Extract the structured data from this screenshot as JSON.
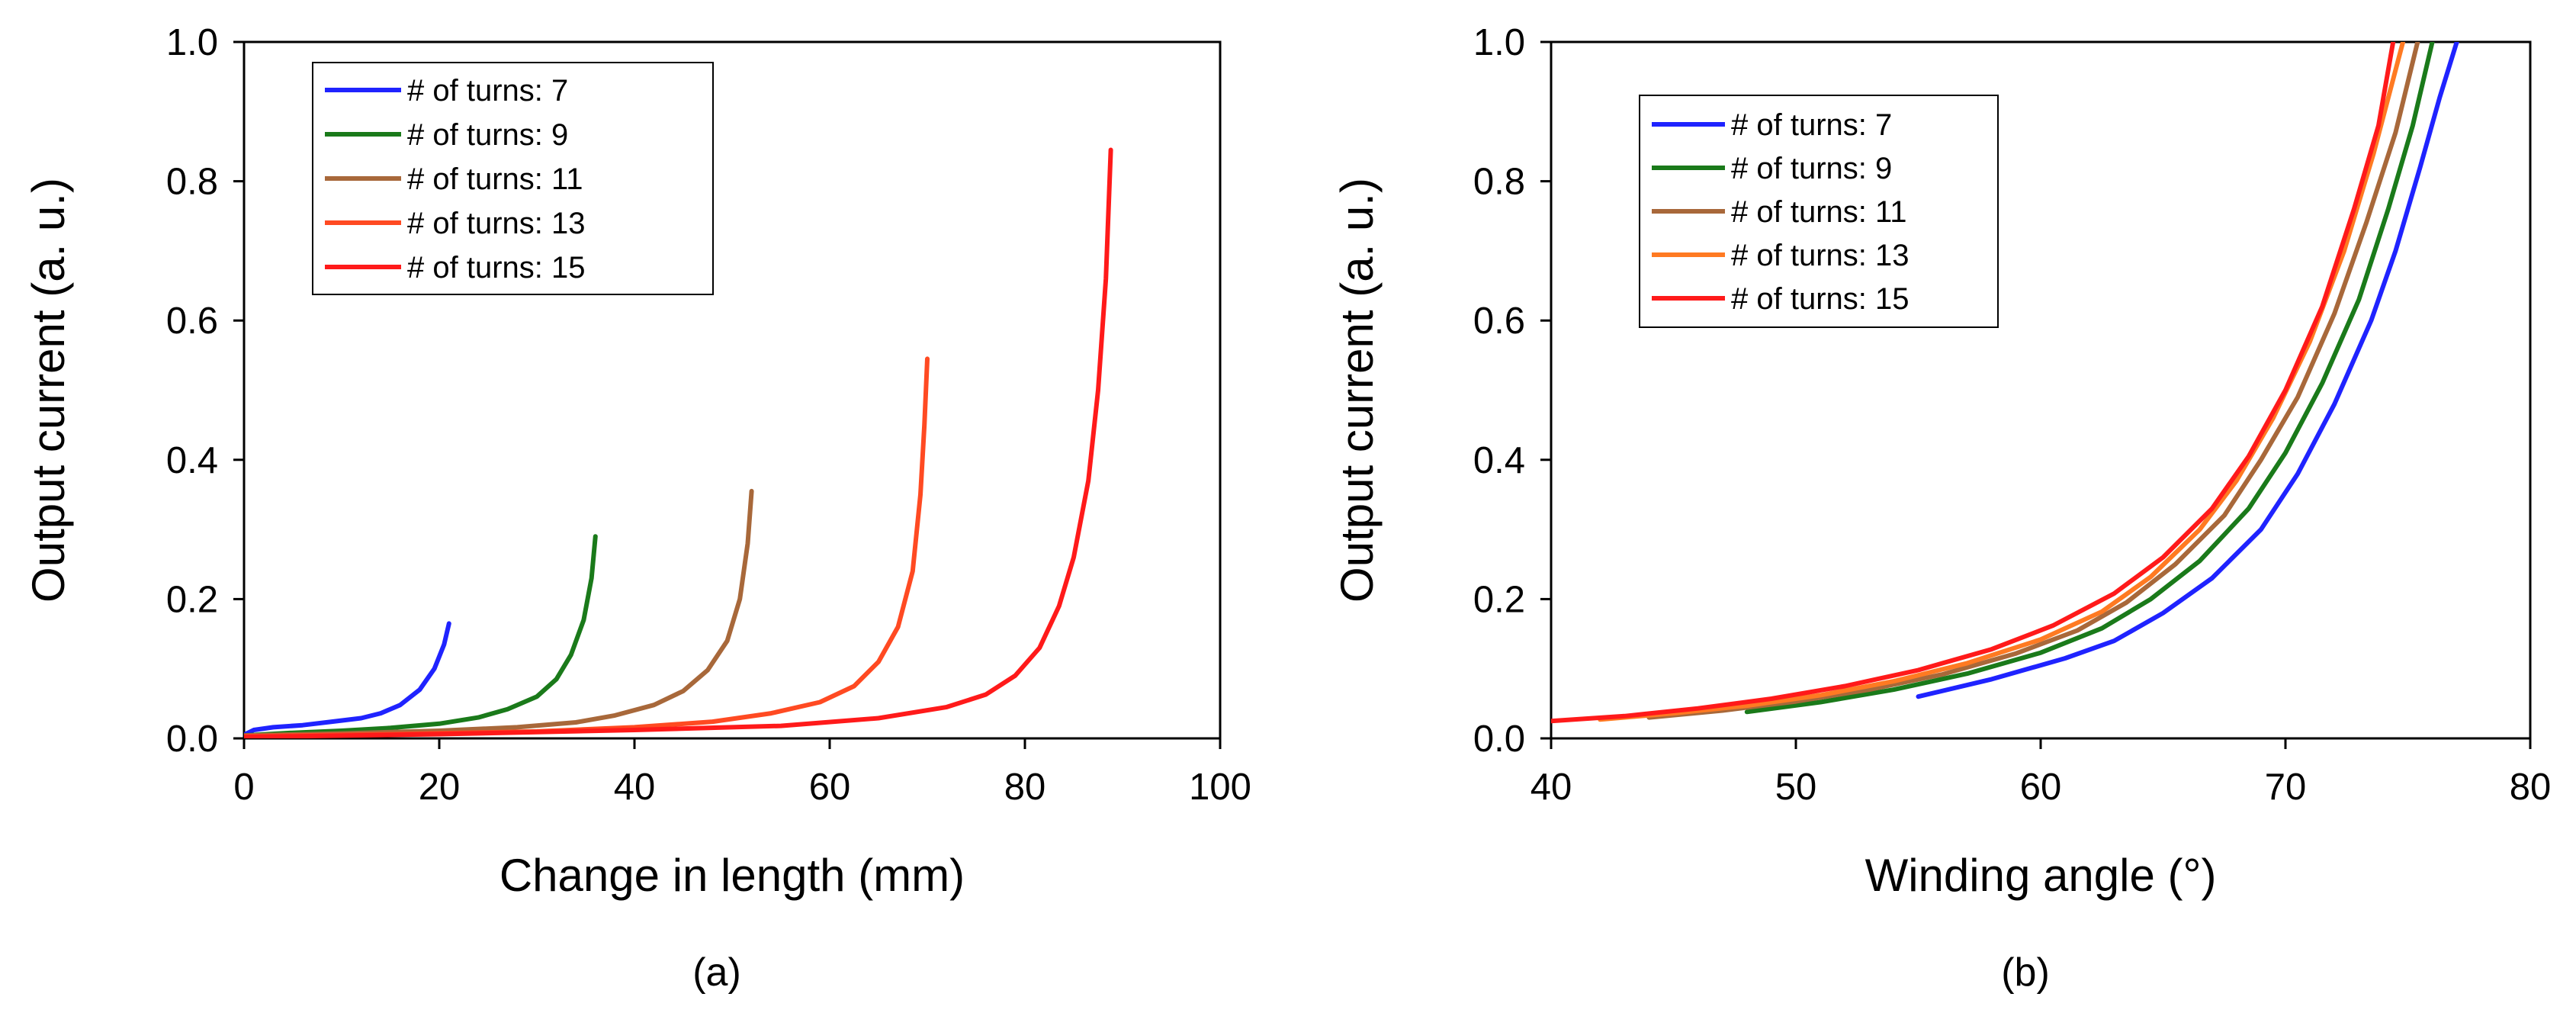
{
  "chart_data": [
    {
      "type": "line",
      "panel_label": "(a)",
      "title": "",
      "xlabel": "Change in length (mm)",
      "ylabel": "Output current (a. u.)",
      "xlim": [
        0,
        100
      ],
      "ylim": [
        0,
        1.0
      ],
      "xticks": [
        0,
        20,
        40,
        60,
        80,
        100
      ],
      "xtick_labels": [
        "0",
        "20",
        "40",
        "60",
        "80",
        "100"
      ],
      "yticks": [
        0,
        0.2,
        0.4,
        0.6,
        0.8,
        1.0
      ],
      "ytick_labels": [
        "0.0",
        "0.2",
        "0.4",
        "0.6",
        "0.8",
        "1.0"
      ],
      "grid": false,
      "legend": "top-left, inside, boxed",
      "series": [
        {
          "name": "# of turns: 7",
          "color": "#1f23ff",
          "points": [
            [
              0,
              0.005
            ],
            [
              1,
              0.012
            ],
            [
              3,
              0.016
            ],
            [
              6,
              0.019
            ],
            [
              9,
              0.024
            ],
            [
              12,
              0.029
            ],
            [
              14,
              0.036
            ],
            [
              16,
              0.048
            ],
            [
              18,
              0.07
            ],
            [
              19.5,
              0.1
            ],
            [
              20.5,
              0.135
            ],
            [
              21,
              0.165
            ]
          ]
        },
        {
          "name": "# of turns: 9",
          "color": "#1a7a1a",
          "points": [
            [
              0,
              0.004
            ],
            [
              5,
              0.008
            ],
            [
              10,
              0.011
            ],
            [
              15,
              0.015
            ],
            [
              20,
              0.021
            ],
            [
              24,
              0.03
            ],
            [
              27,
              0.042
            ],
            [
              30,
              0.06
            ],
            [
              32,
              0.085
            ],
            [
              33.5,
              0.12
            ],
            [
              34.8,
              0.17
            ],
            [
              35.6,
              0.23
            ],
            [
              36,
              0.29
            ]
          ]
        },
        {
          "name": "# of turns: 11",
          "color": "#a8683a",
          "points": [
            [
              0,
              0.004
            ],
            [
              10,
              0.007
            ],
            [
              20,
              0.011
            ],
            [
              28,
              0.016
            ],
            [
              34,
              0.023
            ],
            [
              38,
              0.033
            ],
            [
              42,
              0.048
            ],
            [
              45,
              0.068
            ],
            [
              47.5,
              0.098
            ],
            [
              49.5,
              0.14
            ],
            [
              50.8,
              0.2
            ],
            [
              51.6,
              0.28
            ],
            [
              52,
              0.355
            ]
          ]
        },
        {
          "name": "# of turns: 13",
          "color": "#ff4a22",
          "points": [
            [
              0,
              0.003
            ],
            [
              15,
              0.006
            ],
            [
              30,
              0.01
            ],
            [
              40,
              0.016
            ],
            [
              48,
              0.024
            ],
            [
              54,
              0.036
            ],
            [
              59,
              0.052
            ],
            [
              62.5,
              0.075
            ],
            [
              65,
              0.11
            ],
            [
              67,
              0.16
            ],
            [
              68.5,
              0.24
            ],
            [
              69.3,
              0.35
            ],
            [
              69.7,
              0.45
            ],
            [
              70,
              0.545
            ]
          ]
        },
        {
          "name": "# of turns: 15",
          "color": "#ff1a1a",
          "points": [
            [
              0,
              0.002
            ],
            [
              20,
              0.006
            ],
            [
              40,
              0.012
            ],
            [
              55,
              0.018
            ],
            [
              65,
              0.029
            ],
            [
              72,
              0.045
            ],
            [
              76,
              0.063
            ],
            [
              79,
              0.09
            ],
            [
              81.5,
              0.13
            ],
            [
              83.5,
              0.19
            ],
            [
              85,
              0.26
            ],
            [
              86.5,
              0.37
            ],
            [
              87.5,
              0.5
            ],
            [
              88.3,
              0.66
            ],
            [
              88.8,
              0.845
            ]
          ]
        }
      ]
    },
    {
      "type": "line",
      "panel_label": "(b)",
      "title": "",
      "xlabel": "Winding angle (°)",
      "ylabel": "Output current (a. u.)",
      "xlim": [
        40,
        80
      ],
      "ylim": [
        0,
        1.0
      ],
      "xticks": [
        40,
        50,
        60,
        70,
        80
      ],
      "xtick_labels": [
        "40",
        "50",
        "60",
        "70",
        "80"
      ],
      "yticks": [
        0,
        0.2,
        0.4,
        0.6,
        0.8,
        1.0
      ],
      "ytick_labels": [
        "0.0",
        "0.2",
        "0.4",
        "0.6",
        "0.8",
        "1.0"
      ],
      "grid": false,
      "legend": "top-left, inside, boxed",
      "series": [
        {
          "name": "# of turns: 7",
          "color": "#1f23ff",
          "points": [
            [
              55,
              0.06
            ],
            [
              58,
              0.085
            ],
            [
              61,
              0.115
            ],
            [
              63,
              0.14
            ],
            [
              65,
              0.18
            ],
            [
              67,
              0.23
            ],
            [
              69,
              0.3
            ],
            [
              70.5,
              0.38
            ],
            [
              72,
              0.48
            ],
            [
              73.5,
              0.6
            ],
            [
              74.5,
              0.7
            ],
            [
              75.5,
              0.82
            ],
            [
              76.3,
              0.92
            ],
            [
              77,
              1.0
            ]
          ]
        },
        {
          "name": "# of turns: 9",
          "color": "#1a7a1a",
          "points": [
            [
              48,
              0.038
            ],
            [
              51,
              0.052
            ],
            [
              54,
              0.07
            ],
            [
              57,
              0.093
            ],
            [
              60,
              0.123
            ],
            [
              62.5,
              0.158
            ],
            [
              64.5,
              0.2
            ],
            [
              66.5,
              0.255
            ],
            [
              68.5,
              0.33
            ],
            [
              70,
              0.41
            ],
            [
              71.5,
              0.51
            ],
            [
              73,
              0.63
            ],
            [
              74.2,
              0.76
            ],
            [
              75.2,
              0.88
            ],
            [
              76,
              1.0
            ]
          ]
        },
        {
          "name": "# of turns: 11",
          "color": "#a8683a",
          "points": [
            [
              44,
              0.03
            ],
            [
              47,
              0.04
            ],
            [
              50,
              0.053
            ],
            [
              53,
              0.07
            ],
            [
              56,
              0.092
            ],
            [
              59,
              0.122
            ],
            [
              61.5,
              0.155
            ],
            [
              63.5,
              0.195
            ],
            [
              65.5,
              0.25
            ],
            [
              67.5,
              0.32
            ],
            [
              69,
              0.4
            ],
            [
              70.5,
              0.49
            ],
            [
              72,
              0.61
            ],
            [
              73.3,
              0.74
            ],
            [
              74.5,
              0.87
            ],
            [
              75.4,
              1.0
            ]
          ]
        },
        {
          "name": "# of turns: 13",
          "color": "#ff7a22",
          "points": [
            [
              42,
              0.027
            ],
            [
              45,
              0.036
            ],
            [
              48,
              0.047
            ],
            [
              51,
              0.062
            ],
            [
              54,
              0.082
            ],
            [
              57,
              0.108
            ],
            [
              60,
              0.142
            ],
            [
              62.5,
              0.182
            ],
            [
              64.5,
              0.232
            ],
            [
              66.5,
              0.3
            ],
            [
              68,
              0.37
            ],
            [
              69.5,
              0.46
            ],
            [
              71,
              0.57
            ],
            [
              72.4,
              0.7
            ],
            [
              73.6,
              0.84
            ],
            [
              74.8,
              1.0
            ]
          ]
        },
        {
          "name": "# of turns: 15",
          "color": "#ff1a1a",
          "points": [
            [
              40,
              0.025
            ],
            [
              43,
              0.032
            ],
            [
              46,
              0.043
            ],
            [
              49,
              0.057
            ],
            [
              52,
              0.075
            ],
            [
              55,
              0.098
            ],
            [
              58,
              0.128
            ],
            [
              60.5,
              0.162
            ],
            [
              63,
              0.208
            ],
            [
              65,
              0.26
            ],
            [
              67,
              0.33
            ],
            [
              68.5,
              0.405
            ],
            [
              70,
              0.5
            ],
            [
              71.5,
              0.62
            ],
            [
              72.8,
              0.76
            ],
            [
              73.8,
              0.88
            ],
            [
              74.4,
              1.0
            ]
          ]
        }
      ]
    }
  ]
}
